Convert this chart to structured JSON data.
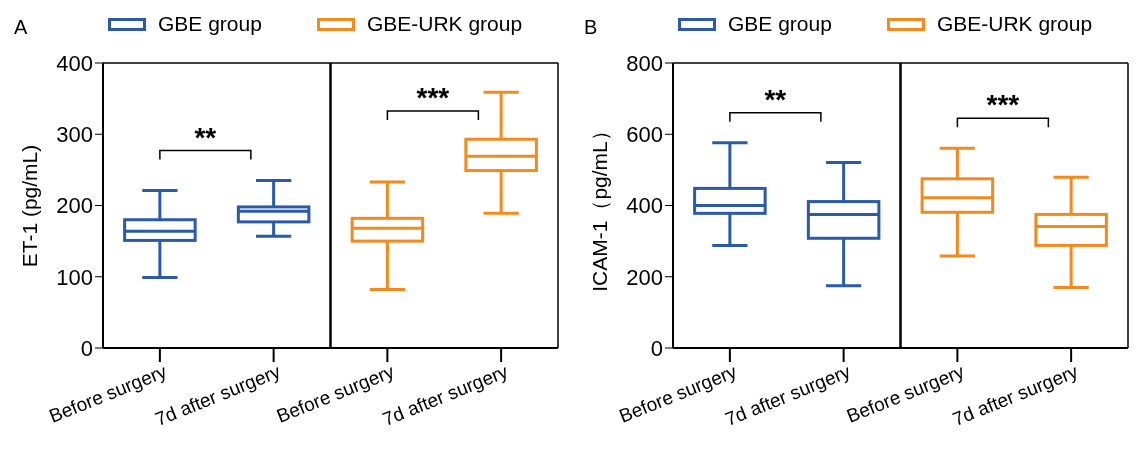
{
  "chart_data": [
    {
      "type": "box",
      "title": "A",
      "ylabel": "ET-1 (pg/mL)",
      "categories": [
        "Before surgery",
        "7d after surgery",
        "Before surgery",
        "7d after surgery"
      ],
      "ylim": [
        0,
        400
      ],
      "yticks": [
        0,
        100,
        200,
        300,
        400
      ],
      "grid": false,
      "legend": "top",
      "annotations": [
        "**",
        "***"
      ],
      "series": [
        {
          "name": "GBE group",
          "color": "#2b5aa8",
          "boxes": [
            {
              "low": 99,
              "q1": 151,
              "median": 164,
              "q3": 180,
              "high": 221
            },
            {
              "low": 157,
              "q1": 177,
              "median": 192,
              "q3": 198,
              "high": 235
            },
            null,
            null
          ]
        },
        {
          "name": "GBE-URK group",
          "color": "#f28a1e",
          "boxes": [
            null,
            null,
            {
              "low": 82,
              "q1": 150,
              "median": 168,
              "q3": 182,
              "high": 233
            },
            {
              "low": 189,
              "q1": 249,
              "median": 269,
              "q3": 293,
              "high": 359
            }
          ]
        }
      ]
    },
    {
      "type": "box",
      "title": "B",
      "ylabel": "ICAM-1（pg/mL）",
      "categories": [
        "Before surgery",
        "7d after surgery",
        "Before surgery",
        "7d after surgery"
      ],
      "ylim": [
        0,
        800
      ],
      "yticks": [
        0,
        200,
        400,
        600,
        800
      ],
      "grid": false,
      "legend": "top",
      "annotations": [
        "**",
        "***"
      ],
      "series": [
        {
          "name": "GBE group",
          "color": "#2b5aa8",
          "boxes": [
            {
              "low": 288,
              "q1": 378,
              "median": 400,
              "q3": 448,
              "high": 576
            },
            {
              "low": 175,
              "q1": 308,
              "median": 375,
              "q3": 411,
              "high": 521
            },
            null,
            null
          ]
        },
        {
          "name": "GBE-URK group",
          "color": "#f28a1e",
          "boxes": [
            null,
            null,
            {
              "low": 258,
              "q1": 381,
              "median": 422,
              "q3": 475,
              "high": 561
            },
            {
              "low": 170,
              "q1": 288,
              "median": 341,
              "q3": 375,
              "high": 479
            }
          ]
        }
      ]
    }
  ]
}
